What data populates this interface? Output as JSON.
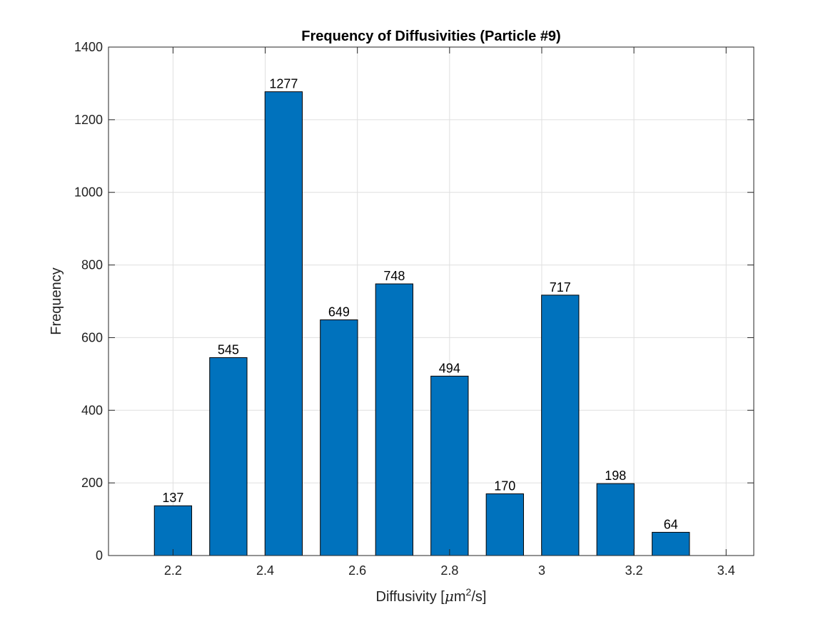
{
  "chart_data": {
    "type": "bar",
    "title": "Frequency of Diffusivities (Particle #9)",
    "xlabel": {
      "prefix": "Diffusivity [",
      "mu": "μ",
      "unit": "m",
      "sup": "2",
      "suffix": "/s]"
    },
    "ylabel": "Frequency",
    "x": [
      2.2,
      2.32,
      2.44,
      2.56,
      2.68,
      2.8,
      2.92,
      3.04,
      3.16,
      3.28
    ],
    "values": [
      137,
      545,
      1277,
      649,
      748,
      494,
      170,
      717,
      198,
      64
    ],
    "bar_width": 0.06,
    "xlim": [
      2.06,
      3.46
    ],
    "ylim": [
      0,
      1400
    ],
    "xticks": [
      2.2,
      2.4,
      2.6,
      2.8,
      3,
      3.2,
      3.4
    ],
    "xtick_labels": [
      "2.2",
      "2.4",
      "2.6",
      "2.8",
      "3",
      "3.2",
      "3.4"
    ],
    "yticks": [
      0,
      200,
      400,
      600,
      800,
      1000,
      1200,
      1400
    ],
    "ytick_labels": [
      "0",
      "200",
      "400",
      "600",
      "800",
      "1000",
      "1200",
      "1400"
    ],
    "grid": true,
    "bar_color": "#0072BD",
    "bar_edge_color": "#000000",
    "grid_color": "#DFDFDF",
    "axis_color": "#262626"
  }
}
